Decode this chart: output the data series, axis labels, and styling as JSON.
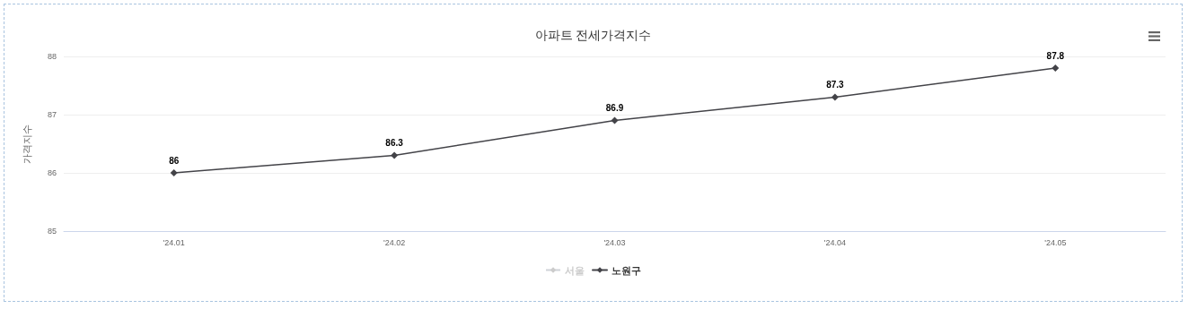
{
  "chart_data": {
    "type": "line",
    "title": "아파트 전세가격지수",
    "ylabel": "가격지수",
    "categories": [
      "'24.01",
      "'24.02",
      "'24.03",
      "'24.04",
      "'24.05"
    ],
    "series": [
      {
        "name": "서울",
        "color": "#cccccc",
        "values": [
          null,
          null,
          null,
          null,
          null
        ]
      },
      {
        "name": "노원구",
        "color": "#434348",
        "values": [
          86,
          86.3,
          86.9,
          87.3,
          87.8
        ]
      }
    ],
    "ylim": [
      85,
      88
    ],
    "yticks": [
      85,
      86,
      87,
      88
    ],
    "grid": "y",
    "legend": "bottom",
    "marker": "diamond",
    "line_style": "solid",
    "data_labels": true
  }
}
